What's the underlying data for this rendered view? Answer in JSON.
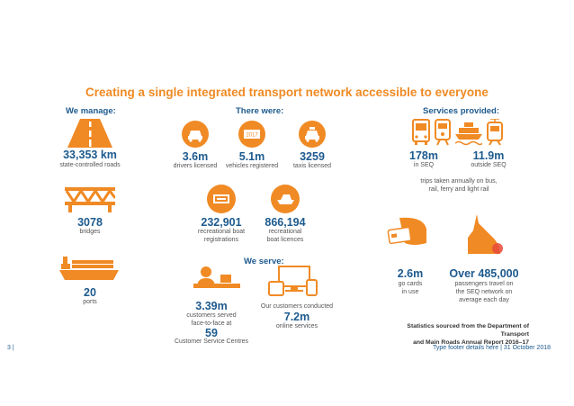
{
  "title": "Creating a single integrated transport network accessible to everyone",
  "headings": {
    "manage": "We manage:",
    "there_were": "There were:",
    "services": "Services provided:",
    "serve": "We serve:"
  },
  "manage": {
    "roads_value": "33,353 km",
    "roads_label": "state-controlled roads",
    "bridges_value": "3078",
    "bridges_label": "bridges",
    "ports_value": "20",
    "ports_label": "ports"
  },
  "there_were": {
    "drivers_value": "3.6m",
    "drivers_label": "drivers licensed",
    "vehicles_value": "5.1m",
    "vehicles_label": "vehicles registered",
    "taxis_value": "3259",
    "taxis_label": "taxis licensed",
    "boatreg_value": "232,901",
    "boatreg_label1": "recreational boat",
    "boatreg_label2": "registrations",
    "boatlic_value": "866,194",
    "boatlic_label1": "recreational",
    "boatlic_label2": "boat licences",
    "rego_year": "2017"
  },
  "services": {
    "seq_value": "178m",
    "seq_label": "in SEQ",
    "outside_value": "11.9m",
    "outside_label": "outside SEQ",
    "trips_line1": "trips taken annually on bus,",
    "trips_line2": "rail, ferry and light rail",
    "gocards_value": "2.6m",
    "gocards_label1": "go cards",
    "gocards_label2": "in use",
    "passengers_value": "Over 485,000",
    "passengers_label1": "passengers travel on",
    "passengers_label2": "the SEQ network on",
    "passengers_label3": "average each day"
  },
  "serve": {
    "customers_value": "3.39m",
    "customers_label1": "customers served",
    "customers_label2": "face-to-face at",
    "centres_value": "59",
    "centres_label": "Customer Service Centres",
    "online_label": "Our customers conducted",
    "online_value": "7.2m",
    "online_services": "online services"
  },
  "source_line1": "Statistics sourced from the Department of Transport",
  "source_line2": "and Main Roads Annual Report 2016–17",
  "footer": {
    "page": "3 |",
    "right": "Type footer details here  |  31 October 2018"
  },
  "colors": {
    "orange": "#F08A24",
    "blue": "#1D5A8E"
  }
}
